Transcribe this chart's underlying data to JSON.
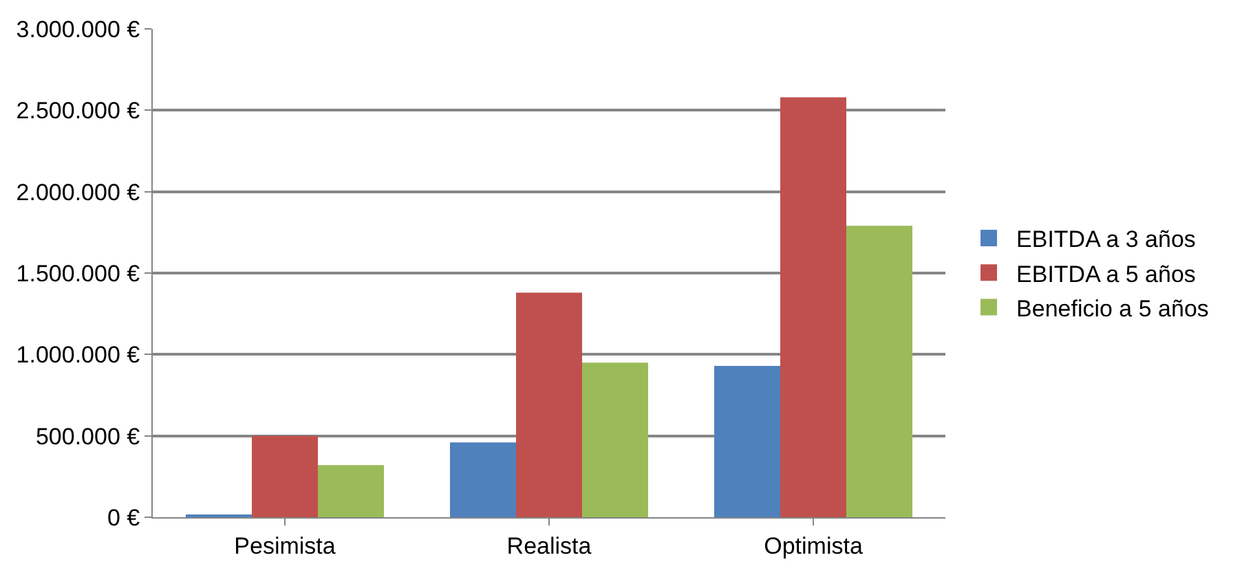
{
  "chart_data": {
    "type": "bar",
    "categories": [
      "Pesimista",
      "Realista",
      "Optimista"
    ],
    "series": [
      {
        "name": "EBITDA a 3 años",
        "color": "#4f81bd",
        "values": [
          10000,
          460000,
          930000
        ]
      },
      {
        "name": "EBITDA a 5 años",
        "color": "#c0504d",
        "values": [
          500000,
          1380000,
          2580000
        ]
      },
      {
        "name": "Beneficio a 5 años",
        "color": "#9bbb59",
        "values": [
          320000,
          950000,
          1790000
        ]
      }
    ],
    "ylim": [
      0,
      3000000
    ],
    "yticks": [
      {
        "value": 0,
        "label": "0 €"
      },
      {
        "value": 500000,
        "label": "500.000 €"
      },
      {
        "value": 1000000,
        "label": "1.000.000 €"
      },
      {
        "value": 1500000,
        "label": "1.500.000 €"
      },
      {
        "value": 2000000,
        "label": "2.000.000 €"
      },
      {
        "value": 2500000,
        "label": "2.500.000 €"
      },
      {
        "value": 3000000,
        "label": "3.000.000 €"
      }
    ],
    "grid": "y",
    "legend": "right"
  }
}
